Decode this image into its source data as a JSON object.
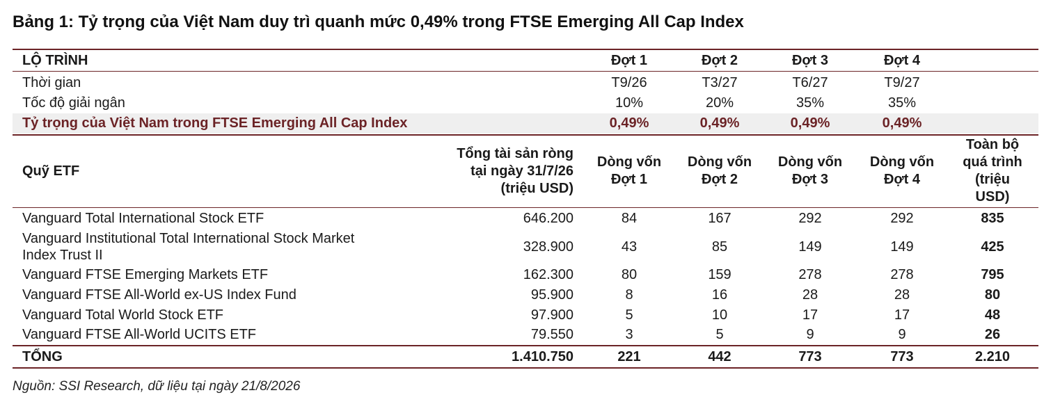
{
  "title": "Bảng 1: Tỷ trọng của Việt Nam duy trì quanh mức 0,49% trong FTSE Emerging All Cap Index",
  "roadmap": {
    "header": [
      "LỘ TRÌNH",
      "Đợt 1",
      "Đợt 2",
      "Đợt 3",
      "Đợt 4"
    ],
    "rows": [
      {
        "label": "Thời gian",
        "values": [
          "T9/26",
          "T3/27",
          "T6/27",
          "T9/27"
        ]
      },
      {
        "label": "Tốc độ giải ngân",
        "values": [
          "10%",
          "20%",
          "35%",
          "35%"
        ]
      },
      {
        "label": "Tỷ trọng của Việt Nam trong FTSE Emerging All Cap Index",
        "values": [
          "0,49%",
          "0,49%",
          "0,49%",
          "0,49%"
        ]
      }
    ]
  },
  "etf_table": {
    "headers": {
      "fund": "Quỹ ETF",
      "nav_line1": "Tổng tài sản ròng",
      "nav_line2": "tại ngày 31/7/26",
      "nav_line3": "(triệu USD)",
      "d1_line1": "Dòng vốn",
      "d1_line2": "Đợt 1",
      "d2_line1": "Dòng vốn",
      "d2_line2": "Đợt 2",
      "d3_line1": "Dòng vốn",
      "d3_line2": "Đợt 3",
      "d4_line1": "Dòng vốn",
      "d4_line2": "Đợt 4",
      "total_line1": "Toàn bộ",
      "total_line2": "quá trình",
      "total_line3": "(triệu",
      "total_line4": "USD)"
    },
    "rows": [
      {
        "fund": "Vanguard Total International Stock ETF",
        "nav": "646.200",
        "d1": "84",
        "d2": "167",
        "d3": "292",
        "d4": "292",
        "total": "835"
      },
      {
        "fund": "Vanguard Institutional Total International Stock Market Index Trust II",
        "nav": "328.900",
        "d1": "43",
        "d2": "85",
        "d3": "149",
        "d4": "149",
        "total": "425"
      },
      {
        "fund": "Vanguard FTSE Emerging Markets ETF",
        "nav": "162.300",
        "d1": "80",
        "d2": "159",
        "d3": "278",
        "d4": "278",
        "total": "795"
      },
      {
        "fund": "Vanguard FTSE All-World ex-US Index Fund",
        "nav": "95.900",
        "d1": "8",
        "d2": "16",
        "d3": "28",
        "d4": "28",
        "total": "80"
      },
      {
        "fund": "Vanguard Total World Stock ETF",
        "nav": "97.900",
        "d1": "5",
        "d2": "10",
        "d3": "17",
        "d4": "17",
        "total": "48"
      },
      {
        "fund": "Vanguard FTSE All-World UCITS ETF",
        "nav": "79.550",
        "d1": "3",
        "d2": "5",
        "d3": "9",
        "d4": "9",
        "total": "26"
      }
    ],
    "total_row": {
      "label": "TỔNG",
      "nav": "1.410.750",
      "d1": "221",
      "d2": "442",
      "d3": "773",
      "d4": "773",
      "total": "2.210"
    }
  },
  "source": "Nguồn: SSI Research, dữ liệu tại ngày 21/8/2026",
  "colors": {
    "accent": "#6b2326",
    "shade": "#efefef"
  }
}
